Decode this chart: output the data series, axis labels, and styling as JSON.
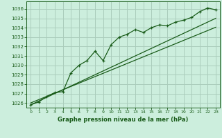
{
  "title": "Graphe pression niveau de la mer (hPa)",
  "bg_color": "#cceedd",
  "grid_color": "#aaccbb",
  "line_color": "#1a5c1a",
  "marker_color": "#1a5c1a",
  "xlim": [
    -0.5,
    23.5
  ],
  "ylim": [
    1025.5,
    1036.8
  ],
  "xticks": [
    0,
    1,
    2,
    3,
    4,
    5,
    6,
    7,
    8,
    9,
    10,
    11,
    12,
    13,
    14,
    15,
    16,
    17,
    18,
    19,
    20,
    21,
    22,
    23
  ],
  "yticks": [
    1026,
    1027,
    1028,
    1029,
    1030,
    1031,
    1032,
    1033,
    1034,
    1035,
    1036
  ],
  "pressure_data": [
    1025.8,
    1026.1,
    1026.7,
    1027.1,
    1027.2,
    1029.2,
    1030.0,
    1030.5,
    1031.5,
    1030.5,
    1032.2,
    1033.0,
    1033.3,
    1033.8,
    1033.5,
    1034.0,
    1034.3,
    1034.2,
    1034.6,
    1034.8,
    1035.1,
    1035.7,
    1036.1,
    1035.9
  ],
  "smooth_line1": [
    1026.0,
    1026.35,
    1026.7,
    1027.05,
    1027.4,
    1027.75,
    1028.1,
    1028.45,
    1028.8,
    1029.15,
    1029.5,
    1029.85,
    1030.2,
    1030.55,
    1030.9,
    1031.25,
    1031.6,
    1031.95,
    1032.3,
    1032.65,
    1033.0,
    1033.35,
    1033.7,
    1034.05
  ],
  "smooth_line2": [
    1025.8,
    1026.2,
    1026.6,
    1027.0,
    1027.4,
    1027.8,
    1028.2,
    1028.6,
    1029.0,
    1029.4,
    1029.8,
    1030.2,
    1030.6,
    1031.0,
    1031.4,
    1031.8,
    1032.2,
    1032.6,
    1033.0,
    1033.4,
    1033.8,
    1034.2,
    1034.6,
    1035.0
  ]
}
